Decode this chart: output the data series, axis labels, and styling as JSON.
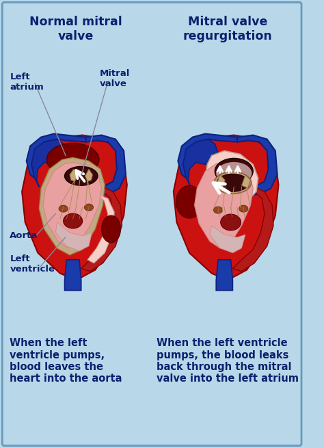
{
  "bg_color": "#b8d8ea",
  "border_color": "#6699bb",
  "title_left": "Normal mitral\nvalve",
  "title_right": "Mitral valve\nregurgitation",
  "title_color": "#0d1f6e",
  "label_left_atrium": "Left\natrium",
  "label_mitral_valve": "Mitral\nvalve",
  "label_aorta": "Aorta",
  "label_left_ventricle": "Left\nventricle",
  "label_color": "#0d1f6e",
  "caption_left": "When the left\nventricle pumps,\nblood leaves the\nheart into the aorta",
  "caption_right": "When the left ventricle\npumps, the blood leaks\nback through the mitral\nvalve into the left atrium",
  "caption_color": "#0d1f6e",
  "heart_red": "#cc1111",
  "heart_mid_red": "#aa0a0a",
  "heart_dark_red": "#7a0000",
  "heart_blue": "#1a3caa",
  "heart_blue_dark": "#102080",
  "heart_pink": "#e8a0a0",
  "heart_light_pink": "#f5d0c8",
  "valve_tan": "#c8a878",
  "valve_dark": "#8b6040",
  "chord_color": "#b09060"
}
